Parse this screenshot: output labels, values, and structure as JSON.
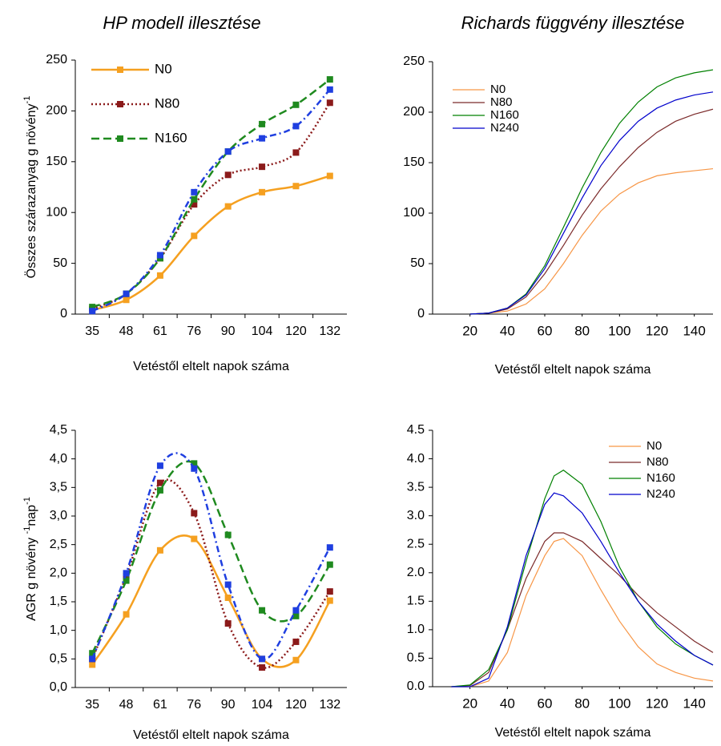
{
  "chart_data": [
    {
      "type": "line",
      "title": "HP modell illesztése",
      "xlabel": "Vetéstől eltelt napok száma",
      "ylabel_parts": [
        {
          "text": "Összes szárazanyag g növény"
        },
        {
          "text": "-1",
          "sup": true
        }
      ],
      "categories": [
        "35",
        "48",
        "61",
        "76",
        "90",
        "104",
        "120",
        "132"
      ],
      "ylim": [
        0,
        250
      ],
      "yticks": [
        0,
        50,
        100,
        150,
        200,
        250
      ],
      "marker": "square",
      "smooth": true,
      "legend": "upper left",
      "series": [
        {
          "name": "N0",
          "color": "#f5a020",
          "style": "solid",
          "values": [
            4,
            14,
            38,
            77,
            106,
            120,
            126,
            136
          ]
        },
        {
          "name": "N80",
          "color": "#8b1a1a",
          "style": "dotted",
          "values": [
            5,
            20,
            55,
            108,
            137,
            145,
            159,
            208
          ]
        },
        {
          "name": "N160",
          "color": "#1f8a1f",
          "style": "dashed",
          "values": [
            7,
            20,
            55,
            113,
            160,
            187,
            206,
            231
          ]
        },
        {
          "color": "#1f3fe0",
          "style": "dashdot",
          "values": [
            3,
            20,
            58,
            120,
            160,
            173,
            185,
            221
          ]
        }
      ]
    },
    {
      "type": "line",
      "title": "Richards függvény illesztése",
      "xlabel": "Vetéstől eltelt napok száma",
      "x": [
        20,
        30,
        40,
        50,
        60,
        70,
        80,
        90,
        100,
        110,
        120,
        130,
        140,
        150
      ],
      "xlim": [
        0,
        150
      ],
      "xticks": [
        20,
        40,
        60,
        80,
        100,
        120,
        140
      ],
      "ylim": [
        0,
        250
      ],
      "yticks": [
        0,
        50,
        100,
        150,
        200,
        250
      ],
      "legend": "upper left",
      "series": [
        {
          "name": "N0",
          "color": "#f79646",
          "values": [
            0,
            1,
            3,
            10,
            25,
            50,
            78,
            102,
            119,
            130,
            137,
            140,
            142,
            144
          ]
        },
        {
          "name": "N80",
          "color": "#7b2a2a",
          "values": [
            0,
            1,
            5,
            17,
            40,
            68,
            98,
            124,
            146,
            165,
            180,
            191,
            198,
            203
          ]
        },
        {
          "name": "N160",
          "color": "#008000",
          "values": [
            0,
            1,
            6,
            20,
            48,
            86,
            125,
            160,
            189,
            210,
            225,
            234,
            239,
            242
          ]
        },
        {
          "name": "N240",
          "color": "#0000cc",
          "values": [
            0,
            1,
            6,
            19,
            45,
            80,
            115,
            147,
            172,
            191,
            204,
            212,
            217,
            220
          ]
        }
      ]
    },
    {
      "type": "line",
      "xlabel": "Vetéstől eltelt napok száma",
      "ylabel_parts": [
        {
          "text": "AGR g növény "
        },
        {
          "text": "-1",
          "sup": true
        },
        {
          "text": "nap"
        },
        {
          "text": "-1",
          "sup": true
        }
      ],
      "categories": [
        "35",
        "48",
        "61",
        "76",
        "90",
        "104",
        "120",
        "132"
      ],
      "ylim": [
        0,
        4.5
      ],
      "yticks": [
        {
          "value": 0,
          "label": "0,0"
        },
        {
          "value": 0.5,
          "label": "0,5"
        },
        {
          "value": 1,
          "label": "1,0"
        },
        {
          "value": 1.5,
          "label": "1,5"
        },
        {
          "value": 2,
          "label": "2,0"
        },
        {
          "value": 2.5,
          "label": "2,5"
        },
        {
          "value": 3,
          "label": "3,0"
        },
        {
          "value": 3.5,
          "label": "3,5"
        },
        {
          "value": 4,
          "label": "4,0"
        },
        {
          "value": 4.5,
          "label": "4,5"
        }
      ],
      "marker": "square",
      "smooth": true,
      "series": [
        {
          "color": "#f5a020",
          "style": "solid",
          "values": [
            0.4,
            1.28,
            2.4,
            2.6,
            1.57,
            0.5,
            0.48,
            1.52
          ]
        },
        {
          "color": "#8b1a1a",
          "style": "dotted",
          "values": [
            0.5,
            1.95,
            3.58,
            3.05,
            1.12,
            0.35,
            0.8,
            1.68
          ]
        },
        {
          "color": "#1f8a1f",
          "style": "dashed",
          "values": [
            0.6,
            1.87,
            3.45,
            3.92,
            2.67,
            1.35,
            1.25,
            2.15
          ]
        },
        {
          "color": "#1f3fe0",
          "style": "dashdot",
          "values": [
            0.5,
            2.0,
            3.88,
            3.83,
            1.8,
            0.5,
            1.35,
            2.45
          ]
        }
      ]
    },
    {
      "type": "line",
      "xlabel": "Vetéstől eltelt napok száma",
      "x": [
        10,
        20,
        30,
        40,
        50,
        60,
        65,
        70,
        80,
        90,
        100,
        110,
        120,
        130,
        140,
        150
      ],
      "xlim": [
        0,
        150
      ],
      "xticks": [
        20,
        40,
        60,
        80,
        100,
        120,
        140
      ],
      "ylim": [
        0,
        4.5
      ],
      "yticks": [
        {
          "value": 0,
          "label": "0.0"
        },
        0.5,
        {
          "value": 1,
          "label": "1.0"
        },
        1.5,
        {
          "value": 2,
          "label": "2.0"
        },
        2.5,
        {
          "value": 3,
          "label": "3.0"
        },
        3.5,
        {
          "value": 4,
          "label": "4.0"
        },
        4.5
      ],
      "legend": "upper right",
      "series": [
        {
          "name": "N0",
          "color": "#f79646",
          "values": [
            0,
            0,
            0.1,
            0.6,
            1.6,
            2.3,
            2.55,
            2.6,
            2.3,
            1.7,
            1.15,
            0.7,
            0.4,
            0.25,
            0.15,
            0.1
          ]
        },
        {
          "name": "N80",
          "color": "#7b2a2a",
          "values": [
            0,
            0.02,
            0.25,
            1.0,
            1.9,
            2.55,
            2.7,
            2.7,
            2.55,
            2.25,
            1.95,
            1.6,
            1.3,
            1.05,
            0.8,
            0.6
          ]
        },
        {
          "name": "N160",
          "color": "#008000",
          "values": [
            0,
            0.03,
            0.3,
            1.0,
            2.2,
            3.3,
            3.7,
            3.8,
            3.55,
            2.9,
            2.1,
            1.5,
            1.05,
            0.75,
            0.55,
            0.38
          ]
        },
        {
          "name": "N240",
          "color": "#0000cc",
          "values": [
            0,
            0,
            0.15,
            1.05,
            2.3,
            3.2,
            3.4,
            3.35,
            3.05,
            2.55,
            2.0,
            1.5,
            1.1,
            0.8,
            0.55,
            0.38
          ]
        }
      ]
    }
  ]
}
